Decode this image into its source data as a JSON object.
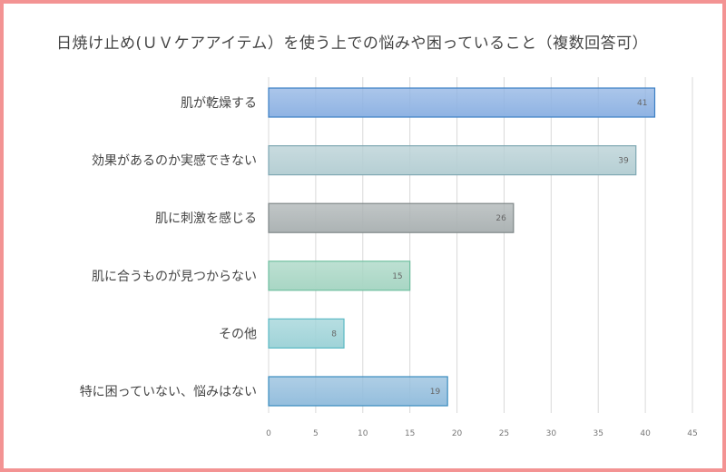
{
  "chart_data": {
    "type": "bar",
    "orientation": "horizontal",
    "title": "日焼け止め(ＵＶケアアイテム）を使う上での悩みや困っていること（複数回答可）",
    "categories": [
      "肌が乾燥する",
      "効果があるのか実感できない",
      "肌に刺激を感じる",
      "肌に合うものが見つからない",
      "その他",
      "特に困っていない、悩みはない"
    ],
    "values": [
      41,
      39,
      26,
      15,
      8,
      19
    ],
    "colors": [
      "#8fb3e3",
      "#b6cfd4",
      "#acb3b4",
      "#a8d6c4",
      "#9fd3d8",
      "#94bedd"
    ],
    "border_colors": [
      "#3b7fc4",
      "#7fa8b3",
      "#7f8788",
      "#6fbfa0",
      "#5bb9c4",
      "#3a8cbf"
    ],
    "xlim": [
      0,
      45
    ],
    "xticks": [
      0,
      5,
      10,
      15,
      20,
      25,
      30,
      35,
      40,
      45
    ],
    "grid": true,
    "legend": "none",
    "xlabel": "",
    "ylabel": ""
  },
  "frame_color": "#f39393"
}
